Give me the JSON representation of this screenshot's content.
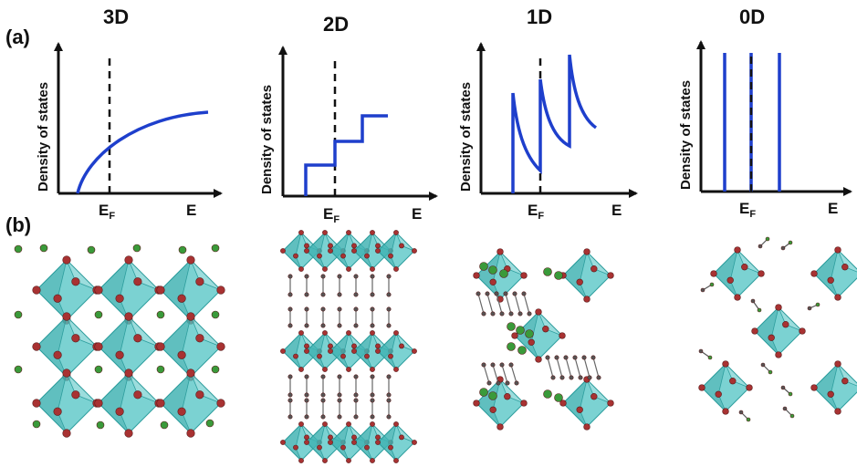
{
  "panel_labels": {
    "a": "(a)",
    "b": "(b)"
  },
  "panels": [
    {
      "title": "3D",
      "ylabel": "Density of states",
      "fermi_label": "E",
      "fermi_sub": "F",
      "xlabel": "E"
    },
    {
      "title": "2D",
      "ylabel": "Density of states",
      "fermi_label": "E",
      "fermi_sub": "F",
      "xlabel": "E"
    },
    {
      "title": "1D",
      "ylabel": "Density of states",
      "fermi_label": "E",
      "fermi_sub": "F",
      "xlabel": "E"
    },
    {
      "title": "0D",
      "ylabel": "Density of states",
      "fermi_label": "E",
      "fermi_sub": "F",
      "xlabel": "E"
    }
  ],
  "colors": {
    "curve": "#1e3fcc",
    "octahedron": "#4fc3c3",
    "octahedron_dark": "#2e9e9e",
    "vertex_atom": "#a83232",
    "a_site_atom": "#3a9a3a",
    "axis": "#111111"
  },
  "structures": [
    "3D perovskite network",
    "2D layered perovskite",
    "1D chain perovskite",
    "0D isolated octahedra"
  ]
}
